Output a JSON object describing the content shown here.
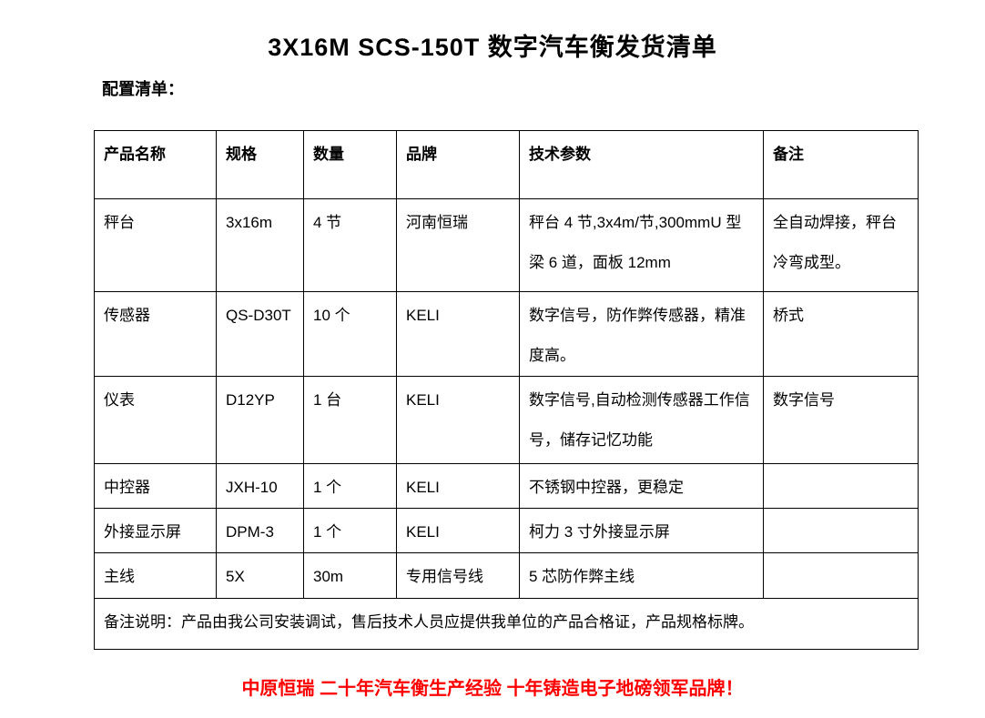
{
  "page": {
    "title": "3X16M SCS-150T 数字汽车衡发货清单",
    "subtitle": "配置清单："
  },
  "table": {
    "headers": {
      "product": "产品名称",
      "spec": "规格",
      "qty": "数量",
      "brand": "品牌",
      "params": "技术参数",
      "note": "备注"
    },
    "rows": [
      {
        "product": "秤台",
        "spec": "3x16m",
        "qty": "4 节",
        "brand": "河南恒瑞",
        "params": "秤台 4 节,3x4m/节,300mmU 型梁 6 道，面板 12mm",
        "note": "全自动焊接，秤台冷弯成型。"
      },
      {
        "product": "传感器",
        "spec": "QS-D30T",
        "qty": "10 个",
        "brand": "KELI",
        "params": "数字信号，防作弊传感器，精准度高。",
        "note": "桥式"
      },
      {
        "product": "仪表",
        "spec": "D12YP",
        "qty": "1 台",
        "brand": "KELI",
        "params": "数字信号,自动检测传感器工作信号，储存记忆功能",
        "note": "数字信号"
      },
      {
        "product": "中控器",
        "spec": "JXH-10",
        "qty": "1 个",
        "brand": "KELI",
        "params": "不锈钢中控器，更稳定",
        "note": ""
      },
      {
        "product": "外接显示屏",
        "spec": "DPM-3",
        "qty": "1 个",
        "brand": "KELI",
        "params": "柯力 3 寸外接显示屏",
        "note": ""
      },
      {
        "product": "主线",
        "spec": "5X",
        "qty": "30m",
        "brand": "专用信号线",
        "params": "5 芯防作弊主线",
        "note": ""
      }
    ],
    "footer_note": "备注说明：产品由我公司安装调试，售后技术人员应提供我单位的产品合格证，产品规格标牌。"
  },
  "footer": {
    "slogan": "中原恒瑞 二十年汽车衡生产经验 十年铸造电子地磅领军品牌！",
    "slogan_color": "#ff0000"
  }
}
